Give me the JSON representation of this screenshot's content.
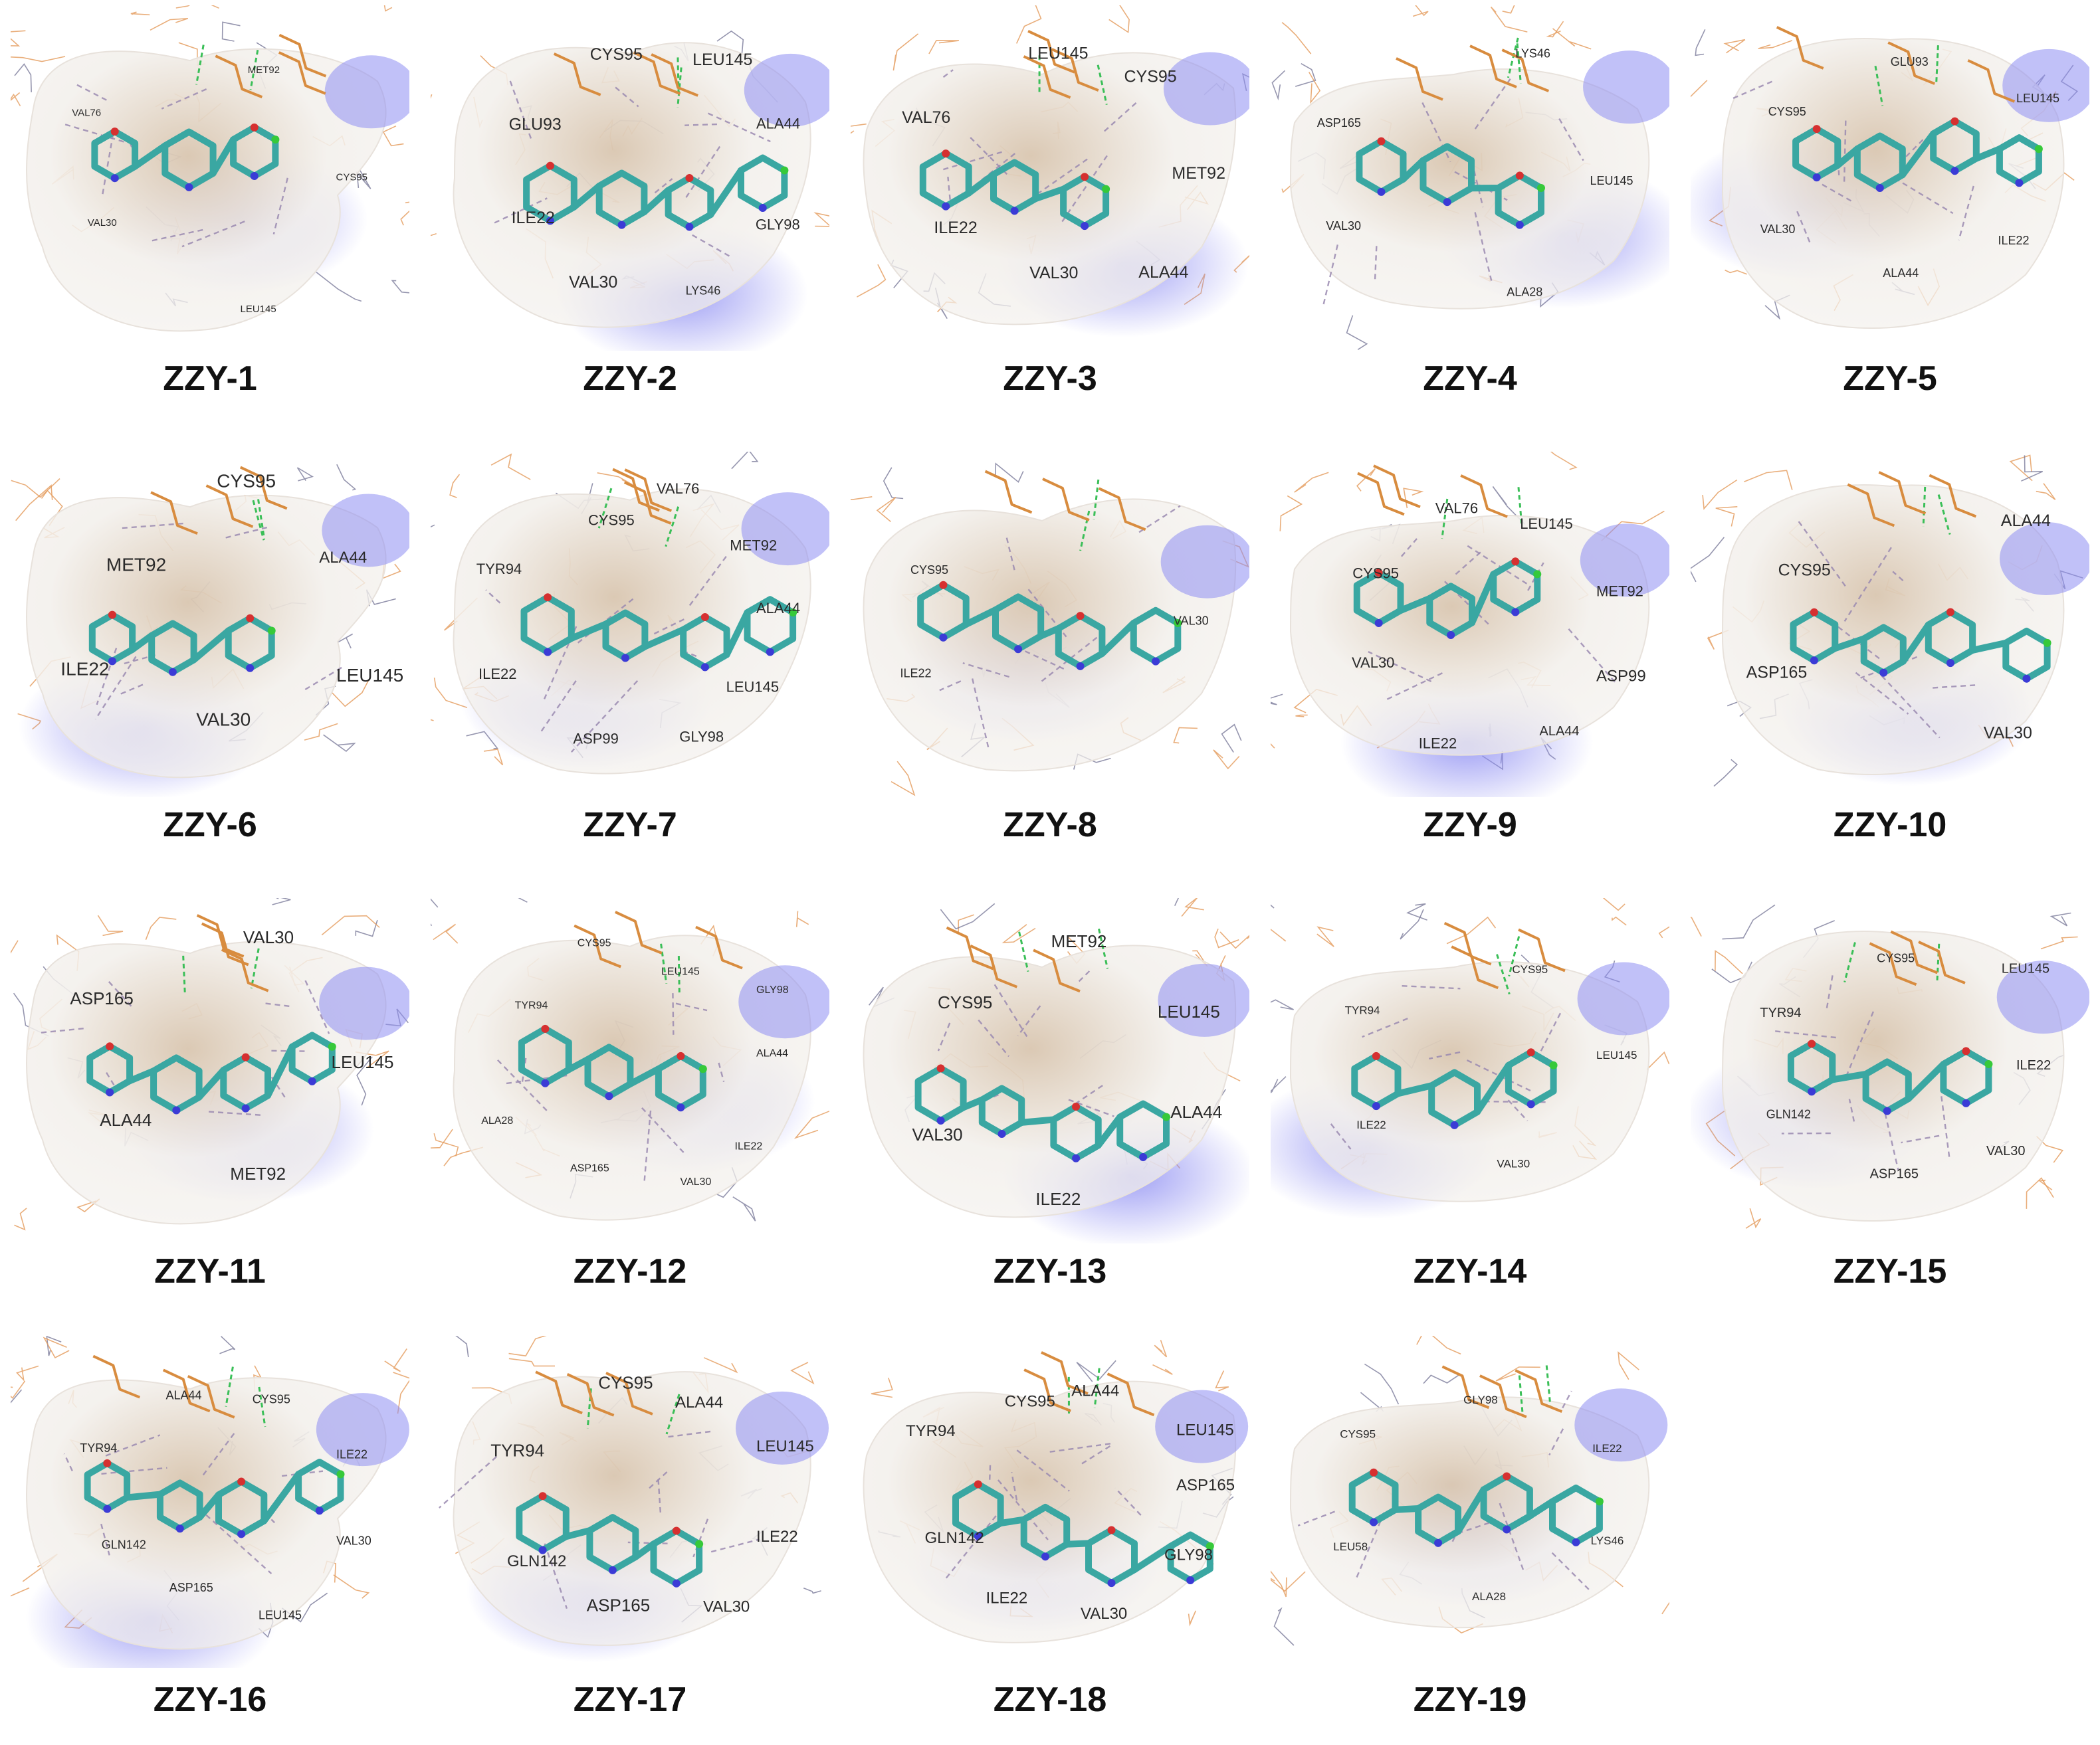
{
  "panels": [
    {
      "label": "ZZY-1",
      "residues": [
        "VAL76",
        "MET92",
        "CYS95",
        "LEU145",
        "VAL30"
      ],
      "sizes": [
        15,
        15,
        15,
        15,
        15
      ],
      "variant": 0
    },
    {
      "label": "ZZY-2",
      "residues": [
        "GLU93",
        "CYS95",
        "LEU145",
        "ALA44",
        "GLY98",
        "LYS46",
        "VAL30",
        "ILE22"
      ],
      "sizes": [
        25,
        25,
        25,
        22,
        22,
        18,
        25,
        25
      ],
      "variant": 1
    },
    {
      "label": "ZZY-3",
      "residues": [
        "VAL76",
        "LEU145",
        "CYS95",
        "MET92",
        "ALA44",
        "VAL30",
        "ILE22"
      ],
      "sizes": [
        25,
        25,
        25,
        25,
        25,
        25,
        25
      ],
      "variant": 2
    },
    {
      "label": "ZZY-4",
      "residues": [
        "ASP165",
        "LYS46",
        "LEU145",
        "ALA28",
        "VAL30"
      ],
      "sizes": [
        18,
        18,
        18,
        18,
        18
      ],
      "variant": 3
    },
    {
      "label": "ZZY-5",
      "residues": [
        "CYS95",
        "GLU93",
        "LEU145",
        "ILE22",
        "ALA44",
        "VAL30"
      ],
      "sizes": [
        18,
        18,
        18,
        18,
        18,
        18
      ],
      "variant": 4
    },
    {
      "label": "ZZY-6",
      "residues": [
        "MET92",
        "CYS95",
        "ALA44",
        "LEU145",
        "VAL30",
        "ILE22"
      ],
      "sizes": [
        28,
        28,
        24,
        28,
        28,
        28
      ],
      "variant": 0
    },
    {
      "label": "ZZY-7",
      "residues": [
        "TYR94",
        "CYS95",
        "VAL76",
        "MET92",
        "ALA44",
        "LEU145",
        "GLY98",
        "ASP99",
        "ILE22"
      ],
      "sizes": [
        22,
        22,
        22,
        22,
        22,
        22,
        22,
        22,
        22
      ],
      "variant": 1
    },
    {
      "label": "ZZY-8",
      "residues": [
        "CYS95",
        "VAL30",
        "ILE22"
      ],
      "sizes": [
        18,
        18,
        18
      ],
      "variant": 2
    },
    {
      "label": "ZZY-9",
      "residues": [
        "CYS95",
        "VAL76",
        "LEU145",
        "MET92",
        "ASP99",
        "ALA44",
        "ILE22",
        "VAL30"
      ],
      "sizes": [
        22,
        22,
        22,
        22,
        24,
        20,
        22,
        22
      ],
      "variant": 3
    },
    {
      "label": "ZZY-10",
      "residues": [
        "CYS95",
        "ALA44",
        "VAL30",
        "ASP165"
      ],
      "sizes": [
        25,
        25,
        25,
        25
      ],
      "variant": 4
    },
    {
      "label": "ZZY-11",
      "residues": [
        "ASP165",
        "VAL30",
        "LEU145",
        "MET92",
        "ALA44"
      ],
      "sizes": [
        26,
        26,
        26,
        26,
        26
      ],
      "variant": 0
    },
    {
      "label": "ZZY-12",
      "residues": [
        "TYR94",
        "CYS95",
        "LEU145",
        "GLY98",
        "ALA44",
        "ILE22",
        "VAL30",
        "ASP165",
        "ALA28"
      ],
      "sizes": [
        16,
        16,
        16,
        16,
        16,
        16,
        16,
        16,
        16
      ],
      "variant": 1
    },
    {
      "label": "ZZY-13",
      "residues": [
        "CYS95",
        "MET92",
        "LEU145",
        "ALA44",
        "ILE22",
        "VAL30"
      ],
      "sizes": [
        26,
        26,
        26,
        26,
        26,
        26
      ],
      "variant": 2
    },
    {
      "label": "ZZY-14",
      "residues": [
        "TYR94",
        "CYS95",
        "LEU145",
        "VAL30",
        "ILE22"
      ],
      "sizes": [
        17,
        17,
        17,
        17,
        17
      ],
      "variant": 3
    },
    {
      "label": "ZZY-15",
      "residues": [
        "TYR94",
        "CYS95",
        "LEU145",
        "ILE22",
        "VAL30",
        "ASP165",
        "GLN142"
      ],
      "sizes": [
        20,
        18,
        20,
        20,
        20,
        20,
        18
      ],
      "variant": 4
    },
    {
      "label": "ZZY-16",
      "residues": [
        "TYR94",
        "ALA44",
        "CYS95",
        "ILE22",
        "VAL30",
        "LEU145",
        "ASP165",
        "GLN142"
      ],
      "sizes": [
        18,
        18,
        18,
        18,
        18,
        18,
        18,
        18
      ],
      "variant": 0
    },
    {
      "label": "ZZY-17",
      "residues": [
        "TYR94",
        "CYS95",
        "ALA44",
        "LEU145",
        "ILE22",
        "VAL30",
        "ASP165",
        "GLN142"
      ],
      "sizes": [
        26,
        26,
        24,
        24,
        24,
        24,
        26,
        24
      ],
      "variant": 1
    },
    {
      "label": "ZZY-18",
      "residues": [
        "TYR94",
        "CYS95",
        "ALA44",
        "LEU145",
        "ASP165",
        "GLY98",
        "VAL30",
        "ILE22",
        "GLN142"
      ],
      "sizes": [
        24,
        24,
        24,
        24,
        24,
        24,
        24,
        24,
        24
      ],
      "variant": 2
    },
    {
      "label": "ZZY-19",
      "residues": [
        "CYS95",
        "GLY98",
        "ILE22",
        "LYS46",
        "ALA28",
        "LEU58"
      ],
      "sizes": [
        17,
        17,
        17,
        17,
        17,
        17
      ],
      "variant": 3
    }
  ],
  "colors": {
    "surface_tan": "#d9c6b0",
    "surface_blue": "#8e8ef2",
    "surface_white": "#f3f0ec",
    "ligand_carbon": "#3aa7a2",
    "ligand_nitrogen": "#3b3bd6",
    "ligand_oxygen": "#d63030",
    "ligand_halogen": "#36c93a",
    "sulfur": "#e4c51f",
    "residue_stick": "#d88c3f",
    "residue_line": "#e39a5a",
    "backbone_line": "#7a7a9a",
    "hbond": "#3bbf58",
    "contact": "#9a8ab0",
    "label_text": "#111111"
  }
}
